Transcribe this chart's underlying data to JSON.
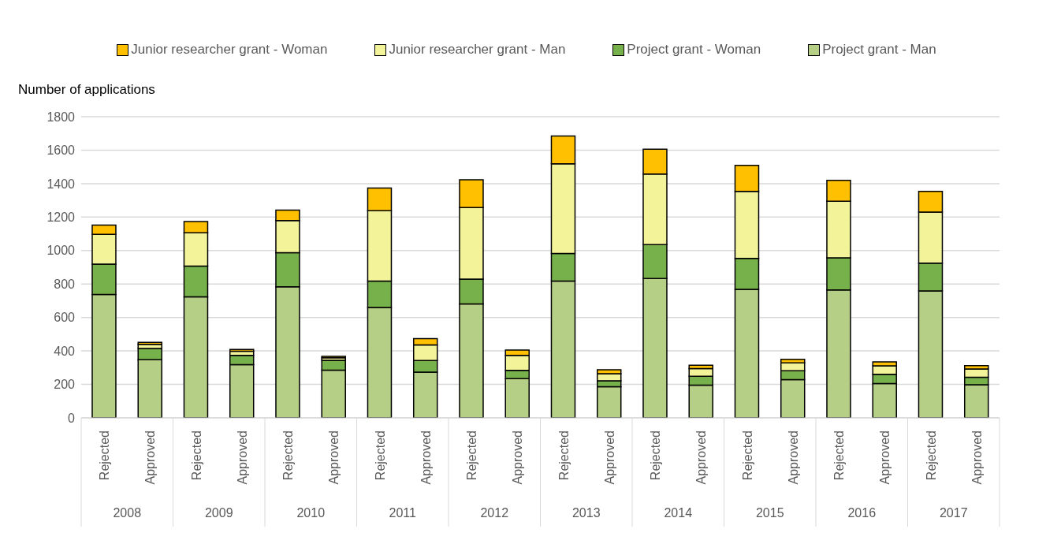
{
  "chart_data": {
    "type": "bar",
    "stacked": true,
    "ylabel": "Number of applications",
    "categories": [
      "Rejected",
      "Approved",
      "Rejected",
      "Approved",
      "Rejected",
      "Approved",
      "Rejected",
      "Approved",
      "Rejected",
      "Approved",
      "Rejected",
      "Approved",
      "Rejected",
      "Approved",
      "Rejected",
      "Approved",
      "Rejected",
      "Approved",
      "Rejected",
      "Approved"
    ],
    "annotations": [
      "2008",
      "2009",
      "2010",
      "2011",
      "2012",
      "2013",
      "2014",
      "2015",
      "2016",
      "2017"
    ],
    "series": [
      {
        "name": "Project grant - Man",
        "color": "#b5cf86",
        "values": [
          738,
          347,
          723,
          318,
          783,
          285,
          660,
          273,
          681,
          234,
          817,
          186,
          833,
          196,
          768,
          228,
          764,
          205,
          759,
          198
        ]
      },
      {
        "name": "Project grant - Woman",
        "color": "#77b14b",
        "values": [
          181,
          68,
          184,
          56,
          204,
          59,
          157,
          70,
          148,
          50,
          166,
          36,
          203,
          53,
          185,
          53,
          193,
          55,
          166,
          45
        ]
      },
      {
        "name": "Junior researcher grant - Man",
        "color": "#f3f499",
        "values": [
          178,
          24,
          199,
          24,
          192,
          15,
          421,
          93,
          428,
          90,
          536,
          42,
          421,
          45,
          401,
          48,
          338,
          51,
          305,
          49
        ]
      },
      {
        "name": "Junior researcher grant - Woman",
        "color": "#fec000",
        "values": [
          55,
          12,
          67,
          11,
          63,
          8,
          136,
          38,
          166,
          31,
          166,
          24,
          149,
          20,
          155,
          21,
          125,
          23,
          124,
          20
        ]
      }
    ],
    "ylim": [
      0,
      1800
    ],
    "yticks": [
      0,
      200,
      400,
      600,
      800,
      1000,
      1200,
      1400,
      1600,
      1800
    ],
    "grid": "y",
    "legend": "top"
  }
}
